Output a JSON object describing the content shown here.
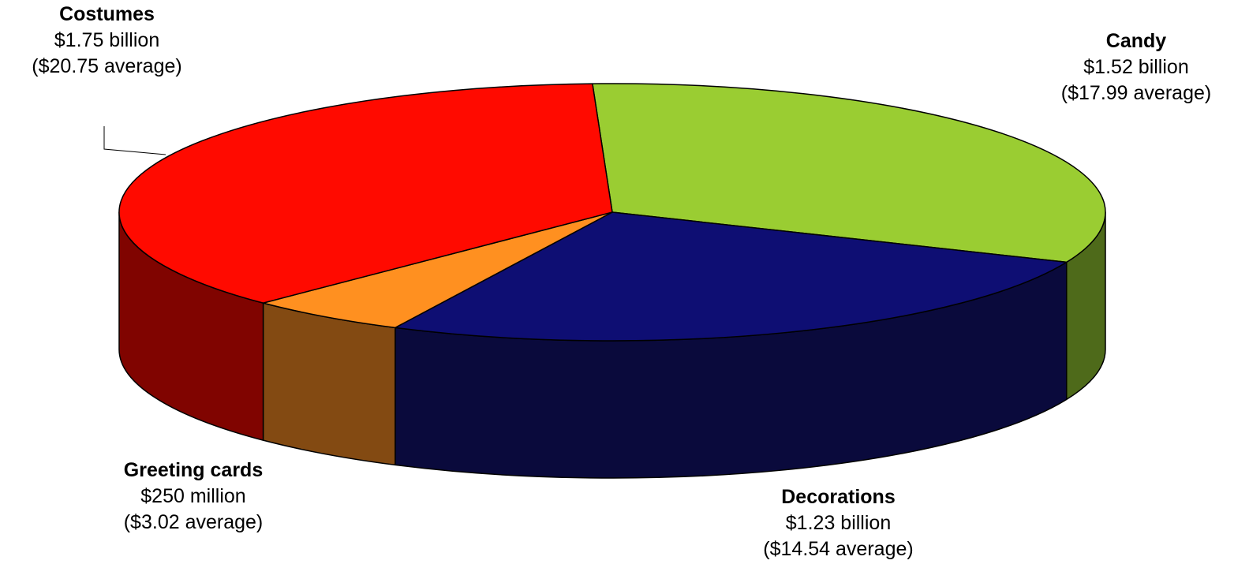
{
  "chart_data": {
    "type": "pie",
    "style": "3d",
    "title": "",
    "units": "billion USD",
    "slices": [
      {
        "name": "Candy",
        "value": 1.52,
        "value_text": "$1.52 billion",
        "average_text": "($17.99 average)",
        "color": "#9ACD32",
        "side_color": "#4E6A1A"
      },
      {
        "name": "Decorations",
        "value": 1.23,
        "value_text": "$1.23 billion",
        "average_text": "($14.54 average)",
        "color": "#0E0E73",
        "side_color": "#0A0A3C"
      },
      {
        "name": "Greeting cards",
        "value": 0.25,
        "value_text": "$250 million",
        "average_text": "($3.02 average)",
        "color": "#FF9020",
        "side_color": "#834A12"
      },
      {
        "name": "Costumes",
        "value": 1.75,
        "value_text": "$1.75 billion",
        "average_text": "($20.75 average)",
        "color": "#FF0A00",
        "side_color": "#800400"
      }
    ]
  }
}
